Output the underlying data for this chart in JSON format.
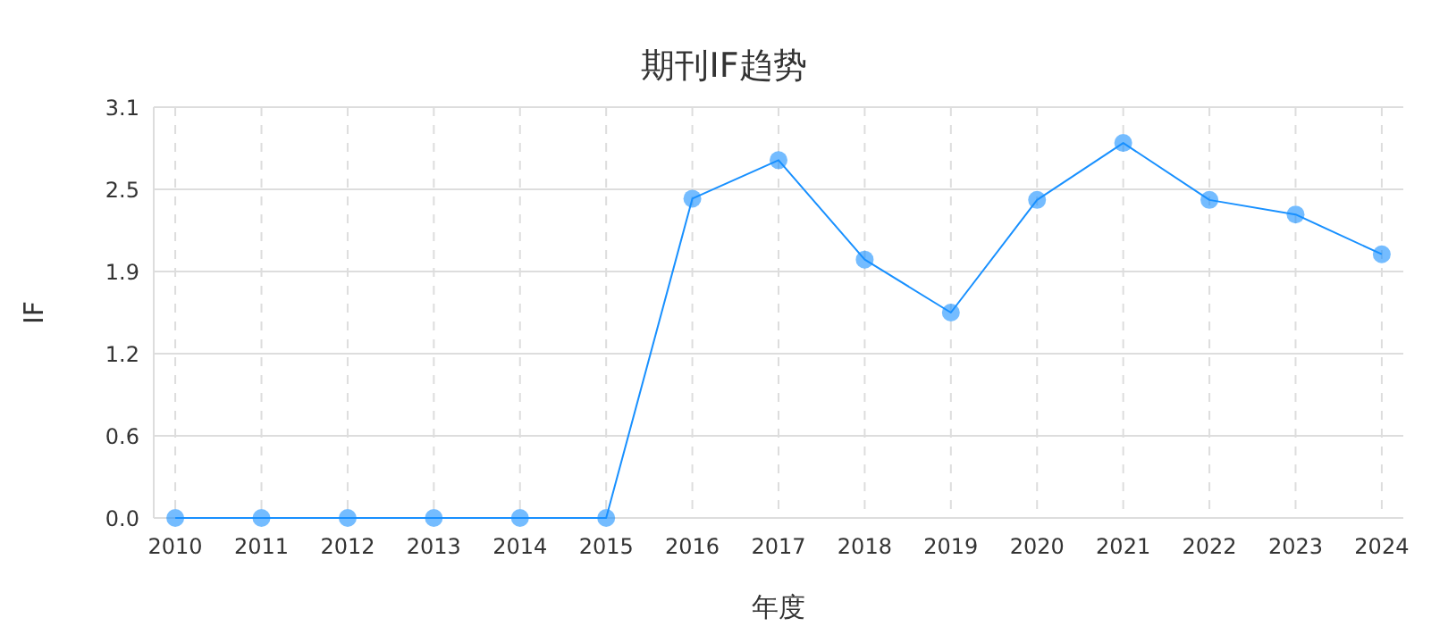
{
  "chart_data": {
    "type": "line",
    "title": "期刊IF趋势",
    "xlabel": "年度",
    "ylabel": "IF",
    "categories": [
      "2010",
      "2011",
      "2012",
      "2013",
      "2014",
      "2015",
      "2016",
      "2017",
      "2018",
      "2019",
      "2020",
      "2021",
      "2022",
      "2023",
      "2024"
    ],
    "series": [
      {
        "color": "#1890ff",
        "values": [
          0,
          0,
          0,
          0,
          0,
          0,
          2.41,
          2.7,
          1.95,
          1.55,
          2.4,
          2.83,
          2.4,
          2.29,
          1.99
        ]
      }
    ],
    "ylim": [
      0,
      3.1
    ],
    "yticks": [
      {
        "value": 0,
        "label": "0.0"
      },
      {
        "value": 0.62,
        "label": "0.6"
      },
      {
        "value": 1.24,
        "label": "1.2"
      },
      {
        "value": 1.86,
        "label": "1.9"
      },
      {
        "value": 2.48,
        "label": "2.5"
      },
      {
        "value": 3.1,
        "label": "3.1"
      }
    ],
    "grid": true,
    "marker": "circle"
  }
}
